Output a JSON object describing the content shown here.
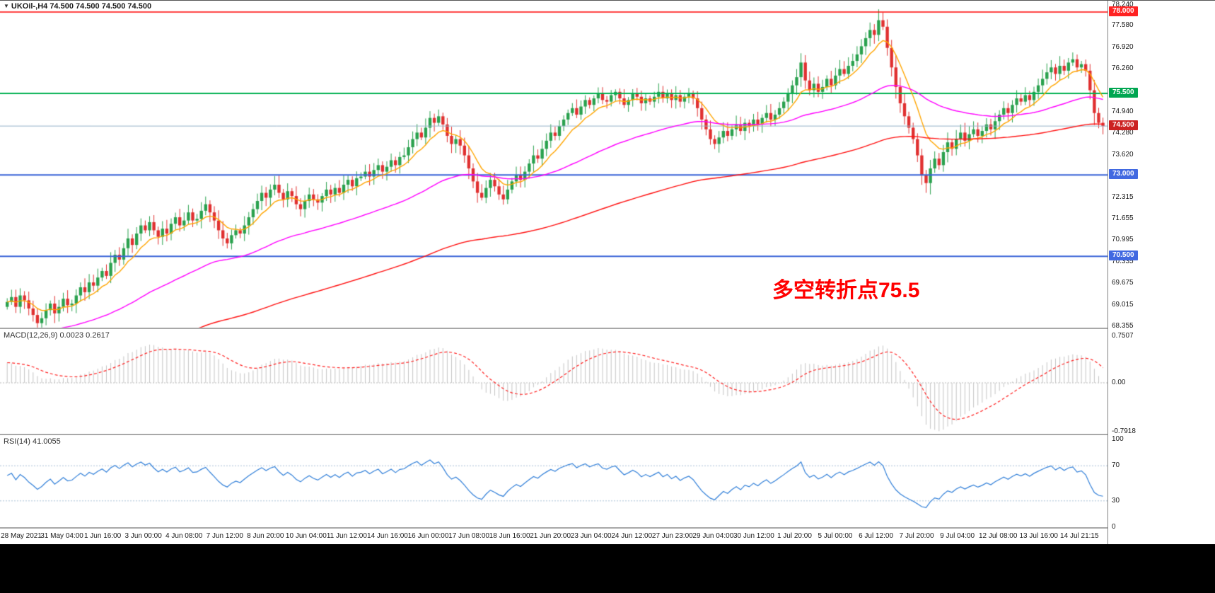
{
  "header": {
    "dropdown_icon": "▼",
    "symbol_text": "UKOil-,H4 74.500 74.500 74.500 74.500"
  },
  "chart_data": {
    "type": "candlestick",
    "symbol": "UKOil-",
    "timeframe": "H4",
    "open_first": 68.95,
    "closes": [
      69.1,
      69.25,
      68.95,
      69.3,
      69.15,
      68.9,
      68.7,
      68.45,
      68.6,
      68.85,
      69.05,
      68.75,
      68.95,
      69.2,
      69.0,
      69.05,
      69.3,
      69.55,
      69.4,
      69.7,
      69.6,
      69.85,
      70.05,
      69.9,
      70.3,
      70.55,
      70.4,
      70.75,
      71.05,
      70.85,
      71.2,
      71.45,
      71.3,
      71.55,
      71.3,
      71.1,
      71.35,
      71.2,
      71.5,
      71.7,
      71.45,
      71.6,
      71.85,
      71.6,
      71.65,
      71.9,
      72.1,
      71.85,
      71.6,
      71.3,
      71.05,
      70.9,
      71.15,
      71.3,
      71.2,
      71.45,
      71.7,
      71.95,
      72.2,
      72.45,
      72.3,
      72.55,
      72.7,
      72.45,
      72.25,
      72.5,
      72.35,
      72.1,
      71.95,
      72.2,
      72.4,
      72.25,
      72.15,
      72.35,
      72.55,
      72.4,
      72.6,
      72.45,
      72.7,
      72.85,
      72.65,
      72.9,
      72.95,
      73.1,
      72.95,
      73.15,
      73.3,
      73.1,
      73.25,
      73.45,
      73.3,
      73.55,
      73.6,
      73.85,
      74.1,
      74.3,
      74.15,
      74.45,
      74.75,
      74.6,
      74.8,
      74.55,
      74.2,
      73.95,
      74.1,
      73.9,
      73.6,
      73.2,
      72.8,
      72.45,
      72.3,
      72.6,
      72.85,
      72.65,
      72.4,
      72.25,
      72.55,
      72.8,
      73.0,
      72.85,
      73.1,
      73.35,
      73.6,
      73.5,
      73.8,
      74.05,
      74.3,
      74.2,
      74.5,
      74.7,
      74.9,
      75.05,
      74.85,
      75.1,
      75.3,
      75.15,
      75.35,
      75.5,
      75.3,
      75.25,
      75.45,
      75.55,
      75.35,
      75.15,
      75.3,
      75.5,
      75.4,
      75.2,
      75.35,
      75.25,
      75.4,
      75.55,
      75.35,
      75.5,
      75.3,
      75.45,
      75.25,
      75.4,
      75.5,
      75.35,
      75.05,
      74.7,
      74.4,
      74.1,
      73.95,
      74.15,
      74.35,
      74.2,
      74.4,
      74.55,
      74.35,
      74.6,
      74.5,
      74.7,
      74.55,
      74.75,
      74.9,
      74.7,
      74.85,
      75.05,
      75.25,
      75.5,
      75.75,
      76.0,
      76.45,
      75.9,
      75.6,
      75.8,
      75.55,
      75.7,
      75.95,
      75.75,
      76.05,
      76.25,
      76.1,
      76.35,
      76.5,
      76.7,
      76.95,
      77.2,
      77.45,
      77.3,
      77.75,
      77.55,
      76.9,
      76.3,
      75.7,
      75.2,
      74.8,
      74.45,
      74.1,
      73.6,
      73.0,
      72.75,
      73.2,
      73.5,
      73.3,
      73.7,
      74.0,
      73.8,
      74.1,
      74.3,
      74.05,
      74.25,
      74.4,
      74.2,
      74.35,
      74.55,
      74.4,
      74.65,
      74.85,
      75.05,
      74.9,
      75.15,
      75.35,
      75.25,
      75.45,
      75.3,
      75.55,
      75.75,
      75.95,
      76.15,
      76.3,
      76.1,
      76.35,
      76.2,
      76.45,
      76.55,
      76.3,
      76.4,
      76.2,
      75.6,
      74.9,
      74.6,
      74.5
    ],
    "colors": {
      "up": "#2aa14e",
      "down": "#e03030"
    },
    "price_axis": {
      "min": 68.355,
      "max": 78.24,
      "ticks": [
        "78.240",
        "77.580",
        "76.920",
        "76.260",
        "74.940",
        "74.280",
        "73.620",
        "72.315",
        "71.655",
        "70.995",
        "70.335",
        "69.675",
        "69.015",
        "68.355"
      ]
    },
    "badges": [
      {
        "label": "78.000",
        "price": 78.0,
        "color": "#ff2222"
      },
      {
        "label": "75.500",
        "price": 75.5,
        "color": "#00a651"
      },
      {
        "label": "74.500",
        "price": 74.5,
        "color": "#cc2222"
      },
      {
        "label": "73.000",
        "price": 73.0,
        "color": "#4169e1"
      },
      {
        "label": "70.500",
        "price": 70.5,
        "color": "#4169e1"
      }
    ],
    "levels": [
      {
        "price": 78.0,
        "color": "#ff0000",
        "width": 1.5
      },
      {
        "price": 75.5,
        "color": "#00b050",
        "width": 2
      },
      {
        "price": 74.5,
        "color": "#94b0c8",
        "width": 1
      },
      {
        "price": 73.0,
        "color": "#3a64d8",
        "width": 2
      },
      {
        "price": 70.5,
        "color": "#3a64d8",
        "width": 2
      }
    ],
    "mas": [
      {
        "name": "ma-fast-orange",
        "period": 9,
        "color": "#ffa500",
        "seed": null
      },
      {
        "name": "ma-mid-magenta",
        "period": 55,
        "color": "#ff00ff",
        "seed": 67.9
      },
      {
        "name": "ma-slow-red",
        "period": 150,
        "color": "#ff1010",
        "seed": 66.6
      }
    ],
    "indicators": {
      "macd": {
        "header": "MACD(12,26,9) 0.0023 0.2617",
        "fast": 12,
        "slow": 26,
        "signal": 9,
        "last_value": 0.0023,
        "last_signal": 0.2617,
        "hist_color": "#c4c4c4",
        "signal_color": "#ff2020",
        "scale_labels": [
          "0.7507",
          "0.00",
          "-0.7918"
        ],
        "scale_values": [
          0.7507,
          0,
          -0.7918
        ]
      },
      "rsi": {
        "header": "RSI(14) 41.0055",
        "period": 14,
        "last_value": 41.0055,
        "line_color": "#2f7ed8",
        "levels": [
          70,
          30
        ],
        "level_color": "#a9bfd4",
        "scale_labels": [
          "100",
          "70",
          "30",
          "0"
        ],
        "scale_values": [
          100,
          70,
          30,
          0
        ]
      }
    },
    "time_axis": {
      "labels": [
        "28 May 2021",
        "31 May 04:00",
        "1 Jun 16:00",
        "3 Jun 00:00",
        "4 Jun 08:00",
        "7 Jun 12:00",
        "8 Jun 20:00",
        "10 Jun 04:00",
        "11 Jun 12:00",
        "14 Jun 16:00",
        "16 Jun 00:00",
        "17 Jun 08:00",
        "18 Jun 16:00",
        "21 Jun 20:00",
        "23 Jun 04:00",
        "24 Jun 12:00",
        "27 Jun 23:00",
        "29 Jun 04:00",
        "30 Jun 12:00",
        "1 Jul 20:00",
        "5 Jul 00:00",
        "6 Jul 12:00",
        "7 Jul 20:00",
        "9 Jul 04:00",
        "12 Jul 08:00",
        "13 Jul 16:00",
        "14 Jul 21:15"
      ]
    },
    "annotation": {
      "text": "多空转折点75.5",
      "color": "#ff0000"
    }
  }
}
